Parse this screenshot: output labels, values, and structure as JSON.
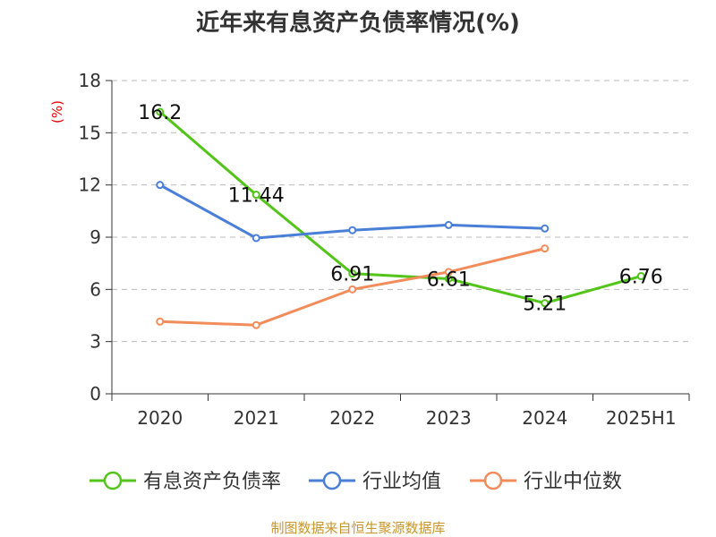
{
  "title": "近年来有息资产负债率情况(%)",
  "source": "制图数据来自恒生聚源数据库",
  "chart_data": {
    "type": "line",
    "title": "近年来有息资产负债率情况(%)",
    "ylabel": "(%)",
    "xlabel": "",
    "categories": [
      "2020",
      "2021",
      "2022",
      "2023",
      "2024",
      "2025H1"
    ],
    "ylim": [
      0,
      18
    ],
    "yticks": [
      0,
      3,
      6,
      9,
      12,
      15,
      18
    ],
    "grid": true,
    "legend_position": "bottom",
    "series": [
      {
        "name": "有息资产负债率",
        "color": "#52c41a",
        "values": [
          16.2,
          11.44,
          6.91,
          6.61,
          5.21,
          6.76
        ],
        "show_labels": true
      },
      {
        "name": "行业均值",
        "color": "#4a7fd8",
        "values": [
          12.0,
          8.95,
          9.4,
          9.7,
          9.5,
          null
        ],
        "show_labels": false
      },
      {
        "name": "行业中位数",
        "color": "#f28c5a",
        "values": [
          4.15,
          3.95,
          6.0,
          7.0,
          8.35,
          null
        ],
        "show_labels": false
      }
    ],
    "data_labels": [
      "16.2",
      "11.44",
      "6.91",
      "6.61",
      "5.21",
      "6.76"
    ]
  }
}
